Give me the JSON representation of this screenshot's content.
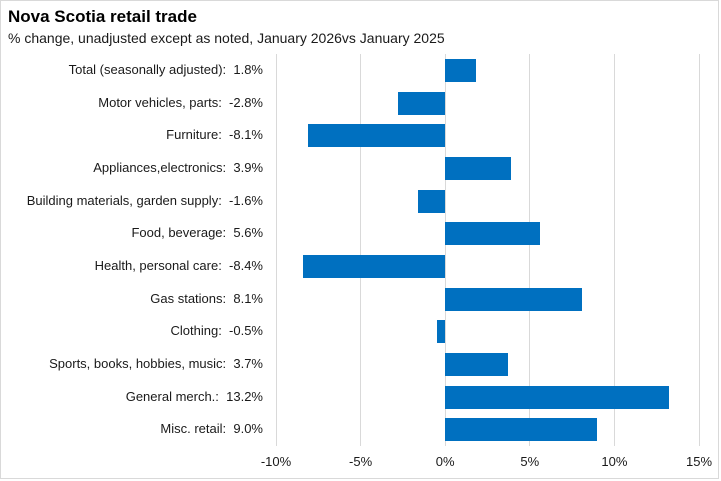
{
  "title": "Nova Scotia retail trade",
  "subtitle": "% change, unadjusted except as noted, January 2026vs January 2025",
  "colors": {
    "bar": "#0070C0",
    "gridline": "#D9D9D9",
    "chart_border": "#D9D9D9",
    "title_text": "#000000",
    "label_text": "#1a1a1a"
  },
  "chart_data": {
    "type": "bar",
    "orientation": "horizontal",
    "title": "Nova Scotia retail trade",
    "subtitle": "% change, unadjusted except as noted, January 2026vs January 2025",
    "categories": [
      "Total (seasonally adjusted)",
      "Motor vehicles, parts",
      "Furniture",
      "Appliances,electronics",
      "Building materials, garden supply",
      "Food, beverage",
      "Health, personal care",
      "Gas stations",
      "Clothing",
      "Sports, books, hobbies, music",
      "General merch.",
      "Misc. retail"
    ],
    "values": [
      1.8,
      -2.8,
      -8.1,
      3.9,
      -1.6,
      5.6,
      -8.4,
      8.1,
      -0.5,
      3.7,
      13.2,
      9.0
    ],
    "value_suffix": "%",
    "value_decimals": 1,
    "x_ticks": [
      -10,
      -5,
      0,
      5,
      10,
      15
    ],
    "x_tick_suffix": "%",
    "xlim": [
      -10,
      15
    ],
    "xlabel": "",
    "ylabel": "",
    "grid": true,
    "legend": false
  }
}
